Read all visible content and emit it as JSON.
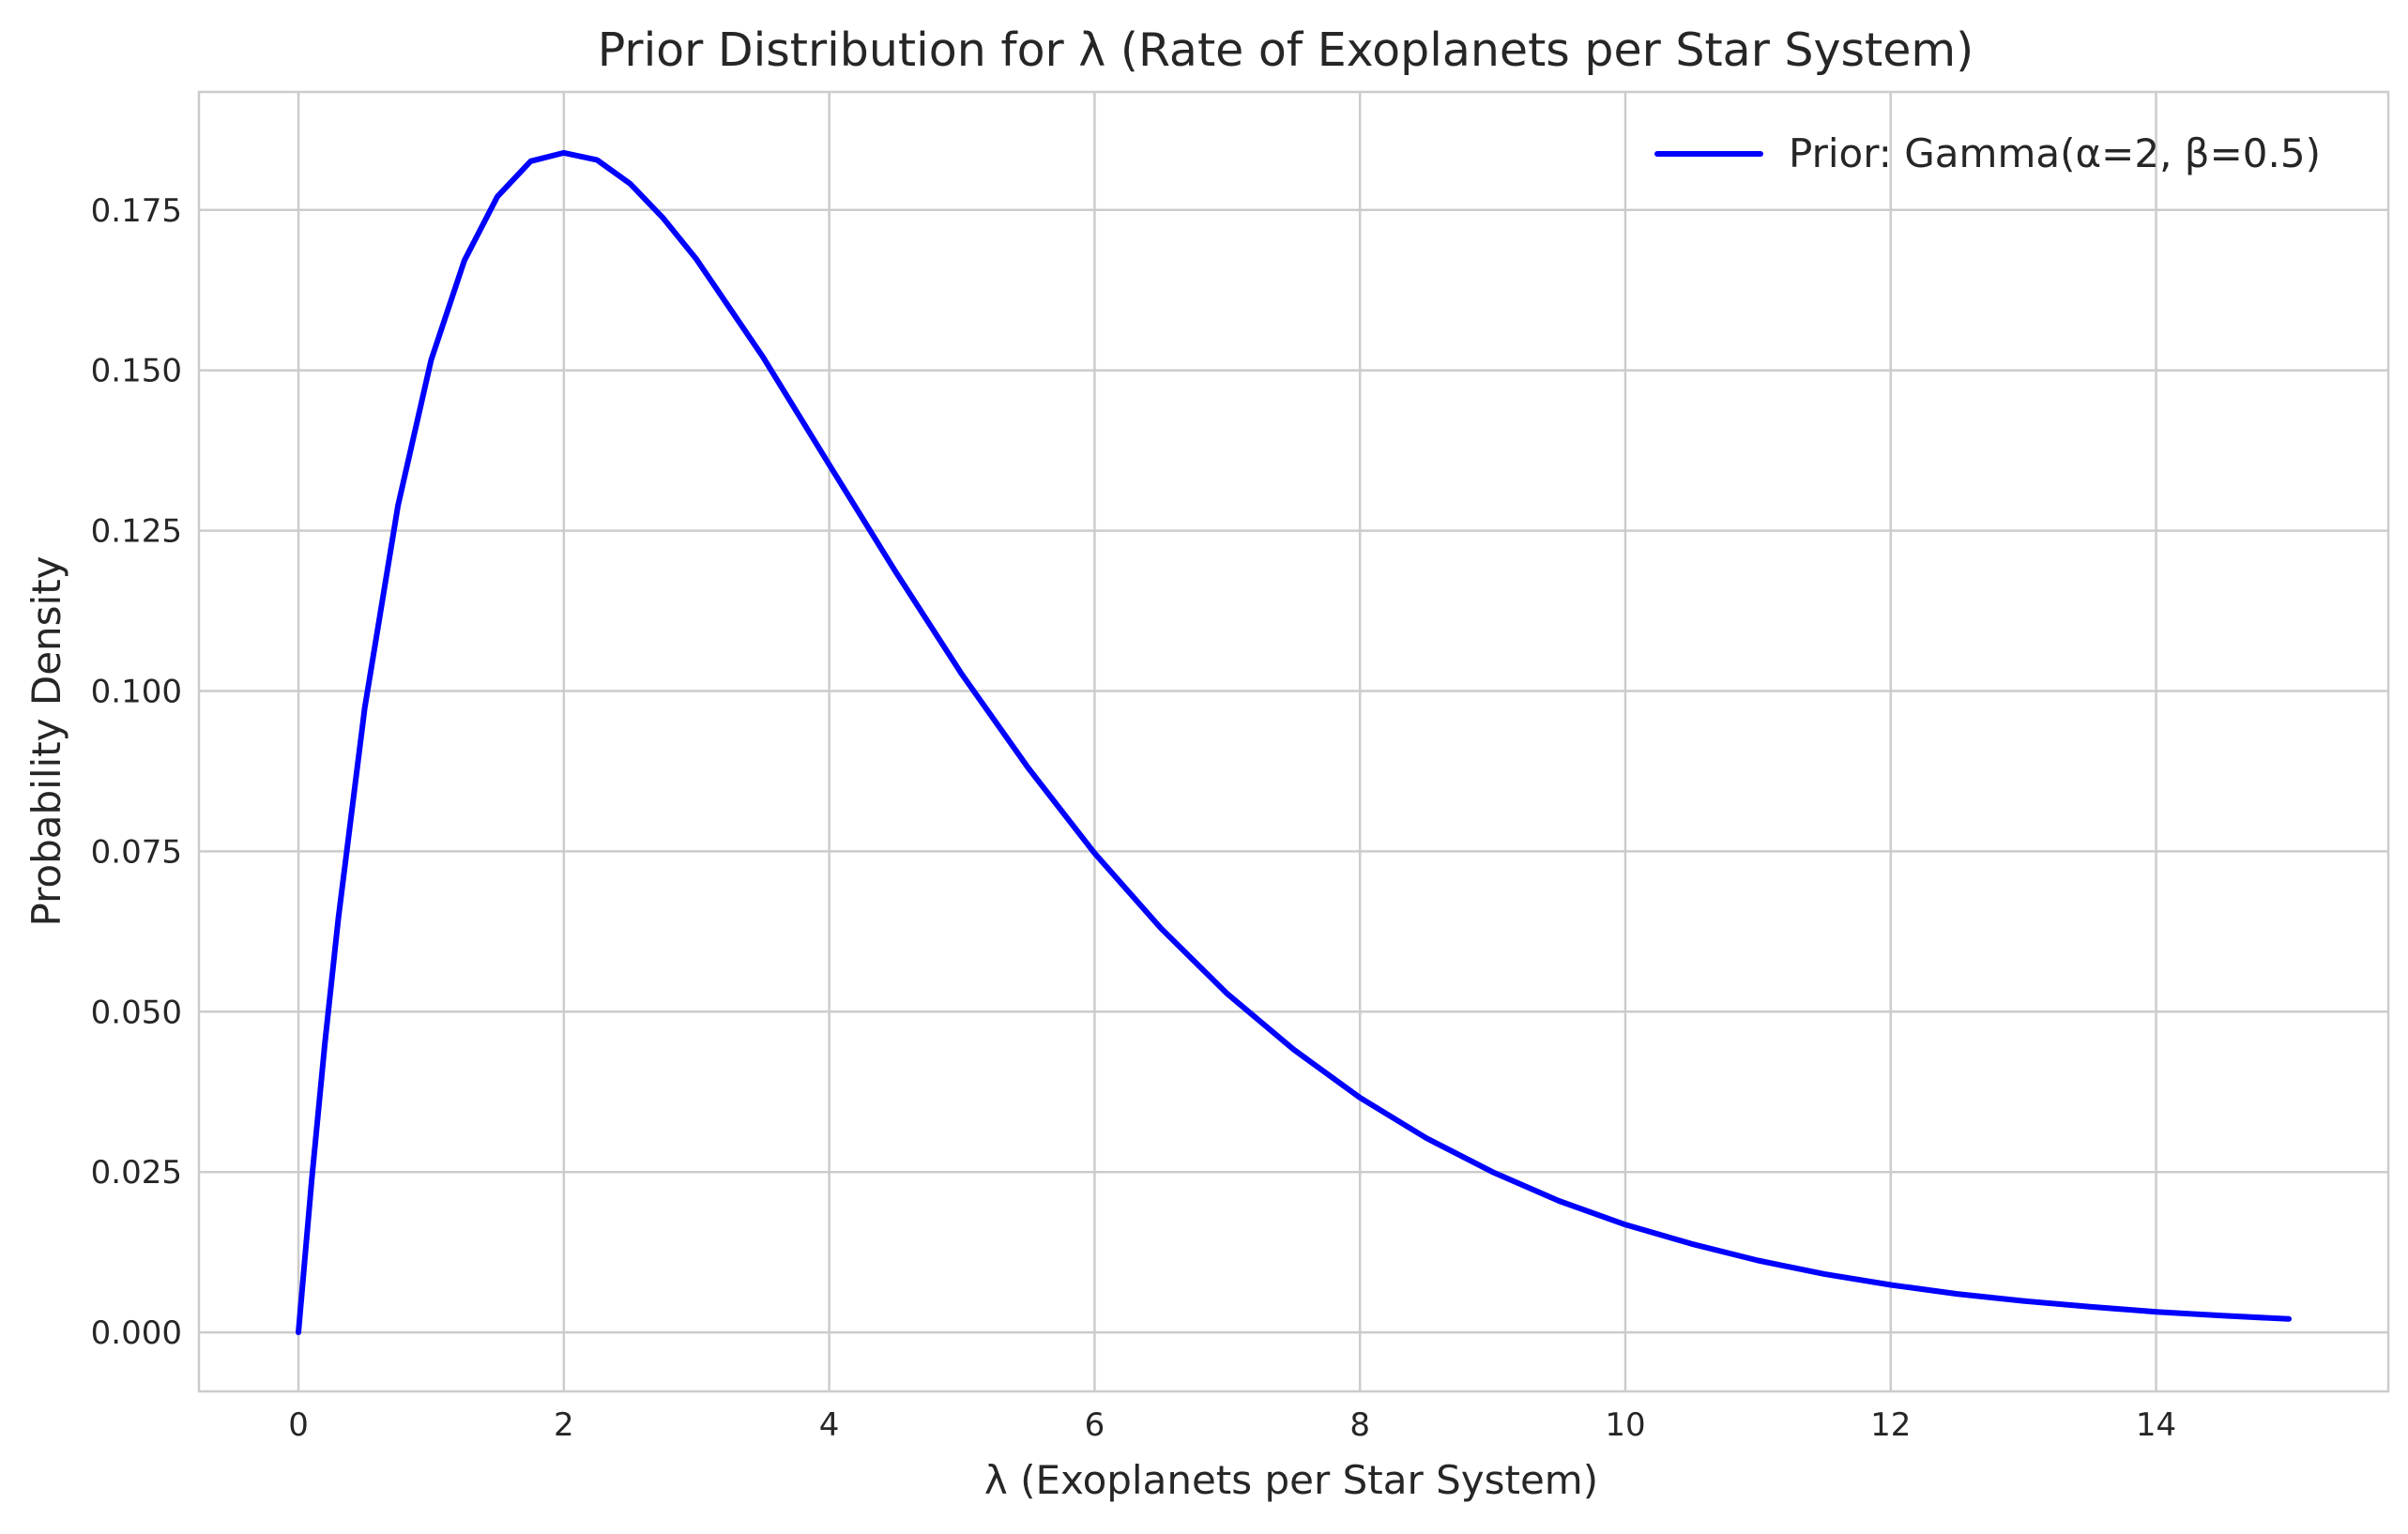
{
  "chart_data": {
    "type": "line",
    "title": "Prior Distribution for λ (Rate of Exoplanets per Star System)",
    "xlabel": "λ (Exoplanets per Star System)",
    "ylabel": "Probability Density",
    "xlim": [
      -0.75,
      15.75
    ],
    "ylim": [
      -0.0092,
      0.1934
    ],
    "x_ticks": [
      0,
      2,
      4,
      6,
      8,
      10,
      12,
      14
    ],
    "x_tick_labels": [
      "0",
      "2",
      "4",
      "6",
      "8",
      "10",
      "12",
      "14"
    ],
    "y_ticks": [
      0,
      0.025,
      0.05,
      0.075,
      0.1,
      0.125,
      0.15,
      0.175
    ],
    "y_tick_labels": [
      "0.000",
      "0.025",
      "0.050",
      "0.075",
      "0.100",
      "0.125",
      "0.150",
      "0.175"
    ],
    "grid": true,
    "legend_position": "top-right",
    "series": [
      {
        "name": "Prior: Gamma(α=2, β=0.5)",
        "color": "#0000ff",
        "x": [
          0,
          0.1,
          0.2,
          0.3,
          0.5,
          0.75,
          1,
          1.25,
          1.5,
          1.75,
          2,
          2.25,
          2.5,
          2.75,
          3,
          3.5,
          4,
          4.5,
          5,
          5.5,
          6,
          6.5,
          7,
          7.5,
          8,
          8.5,
          9,
          9.5,
          10,
          10.5,
          11,
          11.5,
          12,
          12.5,
          13,
          13.5,
          14,
          14.5,
          15
        ],
        "y": [
          0,
          0.0238,
          0.0452,
          0.0645,
          0.0974,
          0.1289,
          0.1516,
          0.1671,
          0.1771,
          0.1826,
          0.1839,
          0.1828,
          0.1791,
          0.1737,
          0.1673,
          0.1521,
          0.1353,
          0.1186,
          0.1026,
          0.088,
          0.0747,
          0.063,
          0.0528,
          0.0441,
          0.0366,
          0.0303,
          0.025,
          0.0205,
          0.0168,
          0.0138,
          0.0112,
          0.0091,
          0.0074,
          0.006,
          0.0049,
          0.004,
          0.0032,
          0.0026,
          0.0021
        ]
      }
    ]
  }
}
